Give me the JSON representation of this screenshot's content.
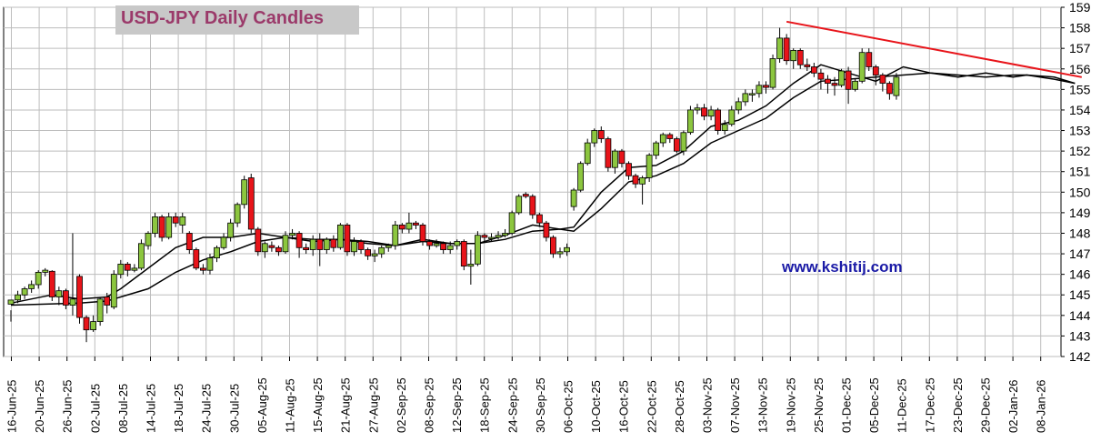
{
  "title": "USD-JPY Daily Candles",
  "watermark": "www.kshitij.com",
  "colors": {
    "up": "#8cc63f",
    "down": "#e8141a",
    "trendline": "#e8141a",
    "ma": "#000000",
    "grid": "#bdbdbd",
    "title_bg": "#c8c8c8",
    "title_text": "#9b3a6a",
    "watermark": "#1a1aa6"
  },
  "chart_data": {
    "type": "candlestick",
    "title": "USD-JPY Daily Candles",
    "ylim": [
      142,
      159
    ],
    "yticks": [
      142,
      143,
      144,
      145,
      146,
      147,
      148,
      149,
      150,
      151,
      152,
      153,
      154,
      155,
      156,
      157,
      158,
      159
    ],
    "y_axis_side": "right",
    "grid": true,
    "x_tick_labels": [
      "16-Jun-25",
      "20-Jun-25",
      "26-Jun-25",
      "02-Jul-25",
      "08-Jul-25",
      "14-Jul-25",
      "18-Jul-25",
      "24-Jul-25",
      "30-Jul-25",
      "05-Aug-25",
      "11-Aug-25",
      "15-Aug-25",
      "21-Aug-25",
      "27-Aug-25",
      "02-Sep-25",
      "08-Sep-25",
      "12-Sep-25",
      "18-Sep-25",
      "24-Sep-25",
      "30-Sep-25",
      "06-Oct-25",
      "10-Oct-25",
      "16-Oct-25",
      "22-Oct-25",
      "28-Oct-25",
      "03-Nov-25",
      "07-Nov-25",
      "13-Nov-25",
      "19-Nov-25",
      "25-Nov-25",
      "01-Dec-25",
      "05-Dec-25",
      "11-Dec-25",
      "17-Dec-25",
      "23-Dec-25",
      "29-Dec-25",
      "02-Jan-26",
      "08-Jan-26"
    ],
    "candles": [
      [
        144.55,
        144.75,
        144.25,
        143.7
      ],
      [
        144.75,
        145.0,
        145.2,
        144.6
      ],
      [
        145.0,
        145.3,
        145.4,
        144.8
      ],
      [
        145.3,
        145.5,
        145.7,
        145.1
      ],
      [
        145.5,
        146.1,
        146.2,
        145.3
      ],
      [
        146.1,
        146.2,
        146.3,
        145.9
      ],
      [
        146.15,
        144.9,
        146.2,
        144.7
      ],
      [
        144.9,
        145.2,
        145.4,
        144.5
      ],
      [
        145.2,
        144.5,
        145.3,
        144.3
      ],
      [
        144.5,
        144.8,
        148.0,
        144.0
      ],
      [
        145.9,
        143.9,
        146.0,
        143.6
      ],
      [
        143.9,
        143.3,
        144.0,
        142.7
      ],
      [
        143.3,
        143.7,
        144.0,
        143.2
      ],
      [
        143.7,
        144.8,
        144.9,
        143.5
      ],
      [
        144.9,
        144.5,
        145.1,
        144.1
      ],
      [
        144.4,
        146.0,
        146.2,
        144.3
      ],
      [
        146.0,
        146.5,
        146.7,
        145.8
      ],
      [
        146.5,
        146.2,
        146.6,
        145.9
      ],
      [
        146.2,
        146.3,
        146.5,
        146.1
      ],
      [
        146.3,
        147.5,
        147.7,
        146.2
      ],
      [
        147.4,
        148.0,
        148.1,
        147.2
      ],
      [
        148.0,
        148.8,
        149.0,
        147.8
      ],
      [
        148.8,
        147.8,
        148.9,
        147.6
      ],
      [
        147.8,
        148.8,
        149.0,
        147.7
      ],
      [
        148.8,
        148.5,
        149.0,
        148.3
      ],
      [
        148.4,
        148.8,
        149.0,
        148.0
      ],
      [
        148.0,
        147.2,
        148.1,
        147.0
      ],
      [
        147.2,
        146.3,
        147.3,
        146.2
      ],
      [
        146.3,
        146.2,
        146.5,
        146.0
      ],
      [
        146.2,
        146.8,
        147.0,
        146.0
      ],
      [
        146.8,
        147.3,
        147.4,
        146.6
      ],
      [
        147.3,
        147.8,
        148.0,
        147.2
      ],
      [
        147.8,
        148.5,
        148.7,
        147.6
      ],
      [
        148.5,
        149.4,
        149.5,
        148.3
      ],
      [
        149.4,
        150.6,
        150.8,
        149.2
      ],
      [
        150.7,
        148.2,
        150.9,
        148.0
      ],
      [
        148.2,
        147.1,
        148.3,
        146.9
      ],
      [
        147.1,
        147.5,
        147.6,
        146.8
      ],
      [
        147.4,
        147.3,
        147.6,
        147.1
      ],
      [
        147.3,
        147.1,
        147.4,
        146.9
      ],
      [
        147.1,
        147.9,
        148.1,
        147.0
      ],
      [
        147.9,
        148.0,
        148.2,
        147.7
      ],
      [
        148.0,
        147.3,
        148.1,
        146.8
      ],
      [
        147.3,
        147.2,
        147.5,
        147.0
      ],
      [
        147.2,
        147.7,
        147.9,
        146.9
      ],
      [
        147.7,
        147.2,
        148.0,
        146.4
      ],
      [
        147.2,
        147.7,
        147.8,
        147.0
      ],
      [
        147.7,
        147.3,
        147.9,
        147.1
      ],
      [
        147.3,
        148.4,
        148.5,
        147.2
      ],
      [
        148.4,
        147.1,
        148.5,
        146.9
      ],
      [
        147.1,
        147.6,
        147.8,
        146.9
      ],
      [
        147.6,
        147.2,
        147.7,
        147.0
      ],
      [
        147.2,
        146.9,
        147.3,
        146.7
      ],
      [
        146.9,
        147.0,
        147.2,
        146.6
      ],
      [
        147.0,
        147.3,
        147.4,
        146.8
      ],
      [
        147.3,
        147.4,
        147.5,
        147.1
      ],
      [
        147.4,
        148.4,
        148.6,
        147.2
      ],
      [
        148.4,
        148.2,
        148.5,
        148.0
      ],
      [
        148.2,
        148.5,
        149.0,
        148.0
      ],
      [
        148.5,
        148.4,
        148.6,
        148.2
      ],
      [
        148.4,
        147.6,
        148.5,
        147.4
      ],
      [
        147.6,
        147.4,
        147.7,
        147.2
      ],
      [
        147.4,
        147.5,
        147.7,
        147.3
      ],
      [
        147.5,
        147.2,
        147.6,
        147.0
      ],
      [
        147.2,
        147.4,
        147.6,
        147.0
      ],
      [
        147.4,
        147.6,
        147.7,
        147.2
      ],
      [
        147.6,
        146.4,
        147.7,
        146.2
      ],
      [
        146.4,
        146.5,
        147.2,
        145.5
      ],
      [
        146.5,
        147.9,
        148.1,
        146.4
      ],
      [
        147.9,
        147.8,
        148.0,
        147.6
      ],
      [
        147.8,
        147.8,
        148.0,
        147.6
      ],
      [
        147.8,
        147.9,
        148.1,
        147.7
      ],
      [
        147.9,
        148.0,
        148.2,
        147.8
      ],
      [
        148.0,
        149.0,
        149.1,
        147.9
      ],
      [
        149.0,
        149.8,
        149.9,
        148.9
      ],
      [
        149.9,
        149.8,
        150.0,
        149.7
      ],
      [
        149.8,
        148.9,
        149.9,
        148.7
      ],
      [
        148.9,
        148.5,
        149.0,
        148.3
      ],
      [
        148.5,
        147.8,
        148.6,
        147.6
      ],
      [
        147.8,
        147.0,
        147.9,
        146.8
      ],
      [
        147.0,
        147.1,
        147.3,
        146.8
      ],
      [
        147.1,
        147.3,
        147.5,
        146.9
      ],
      [
        149.3,
        150.1,
        150.2,
        149.1
      ],
      [
        150.1,
        151.4,
        151.5,
        150.0
      ],
      [
        151.4,
        152.4,
        152.6,
        151.3
      ],
      [
        152.4,
        153.0,
        153.1,
        152.2
      ],
      [
        153.0,
        152.6,
        153.2,
        152.4
      ],
      [
        152.6,
        151.2,
        152.7,
        151.0
      ],
      [
        151.2,
        152.0,
        152.1,
        150.9
      ],
      [
        152.0,
        151.4,
        152.1,
        151.2
      ],
      [
        151.4,
        150.8,
        151.5,
        150.6
      ],
      [
        150.8,
        150.4,
        150.9,
        150.2
      ],
      [
        150.4,
        150.7,
        150.8,
        149.4
      ],
      [
        150.7,
        151.8,
        151.9,
        150.5
      ],
      [
        151.8,
        152.4,
        152.5,
        151.6
      ],
      [
        152.4,
        152.8,
        152.9,
        152.2
      ],
      [
        152.8,
        152.6,
        152.9,
        152.4
      ],
      [
        152.6,
        152.0,
        152.7,
        151.9
      ],
      [
        152.0,
        152.9,
        153.0,
        151.8
      ],
      [
        152.9,
        154.0,
        154.2,
        152.8
      ],
      [
        154.0,
        154.1,
        154.3,
        153.8
      ],
      [
        154.1,
        153.7,
        154.3,
        153.5
      ],
      [
        153.7,
        154.0,
        154.2,
        153.5
      ],
      [
        154.0,
        153.0,
        154.1,
        152.8
      ],
      [
        153.0,
        153.3,
        153.5,
        152.8
      ],
      [
        153.3,
        154.0,
        154.2,
        153.2
      ],
      [
        154.0,
        154.4,
        154.6,
        153.8
      ],
      [
        154.4,
        154.8,
        155.0,
        154.2
      ],
      [
        154.8,
        154.8,
        155.0,
        154.4
      ],
      [
        154.8,
        155.2,
        155.4,
        154.6
      ],
      [
        155.2,
        155.1,
        155.4,
        154.8
      ],
      [
        155.1,
        156.5,
        156.7,
        155.0
      ],
      [
        156.5,
        157.5,
        158.0,
        156.3
      ],
      [
        157.5,
        156.4,
        157.7,
        156.2
      ],
      [
        156.4,
        156.9,
        157.0,
        156.0
      ],
      [
        156.9,
        156.2,
        157.0,
        156.0
      ],
      [
        156.2,
        156.1,
        156.5,
        155.9
      ],
      [
        156.1,
        155.8,
        156.3,
        155.6
      ],
      [
        155.8,
        155.5,
        156.0,
        155.0
      ],
      [
        155.5,
        155.3,
        155.7,
        154.8
      ],
      [
        155.3,
        155.2,
        155.6,
        154.7
      ],
      [
        155.2,
        155.9,
        156.0,
        155.1
      ],
      [
        155.9,
        155.0,
        156.1,
        154.3
      ],
      [
        155.0,
        155.4,
        155.5,
        154.9
      ],
      [
        155.4,
        156.8,
        157.0,
        155.3
      ],
      [
        156.8,
        156.1,
        157.0,
        155.9
      ],
      [
        156.1,
        155.7,
        156.2,
        155.2
      ],
      [
        155.7,
        155.3,
        155.8,
        154.9
      ],
      [
        155.3,
        154.8,
        155.4,
        154.5
      ],
      [
        154.7,
        155.6,
        155.8,
        154.5
      ]
    ],
    "ma_short": [
      [
        0,
        144.6
      ],
      [
        6,
        145.0
      ],
      [
        10,
        144.8
      ],
      [
        14,
        144.9
      ],
      [
        16,
        145.3
      ],
      [
        20,
        146.3
      ],
      [
        24,
        147.3
      ],
      [
        28,
        147.8
      ],
      [
        32,
        147.8
      ],
      [
        36,
        148.0
      ],
      [
        40,
        147.8
      ],
      [
        44,
        147.6
      ],
      [
        48,
        147.7
      ],
      [
        52,
        147.5
      ],
      [
        56,
        147.4
      ],
      [
        60,
        147.7
      ],
      [
        64,
        147.5
      ],
      [
        68,
        147.5
      ],
      [
        72,
        147.9
      ],
      [
        76,
        148.4
      ],
      [
        80,
        148.2
      ],
      [
        82,
        148.3
      ],
      [
        86,
        150.0
      ],
      [
        90,
        151.2
      ],
      [
        94,
        151.3
      ],
      [
        98,
        152.0
      ],
      [
        102,
        153.2
      ],
      [
        106,
        153.5
      ],
      [
        110,
        154.2
      ],
      [
        114,
        155.3
      ],
      [
        118,
        156.2
      ],
      [
        122,
        155.8
      ],
      [
        126,
        155.4
      ],
      [
        130,
        156.1
      ],
      [
        134,
        155.8
      ],
      [
        138,
        155.6
      ],
      [
        142,
        155.8
      ],
      [
        146,
        155.6
      ],
      [
        148,
        155.7
      ],
      [
        152,
        155.6
      ],
      [
        155,
        155.3
      ]
    ],
    "ma_long": [
      [
        0,
        144.5
      ],
      [
        10,
        144.6
      ],
      [
        14,
        144.7
      ],
      [
        16,
        144.9
      ],
      [
        20,
        145.3
      ],
      [
        24,
        146.1
      ],
      [
        28,
        146.7
      ],
      [
        32,
        147.1
      ],
      [
        36,
        147.6
      ],
      [
        40,
        147.8
      ],
      [
        44,
        147.7
      ],
      [
        48,
        147.7
      ],
      [
        52,
        147.6
      ],
      [
        56,
        147.4
      ],
      [
        60,
        147.6
      ],
      [
        64,
        147.5
      ],
      [
        68,
        147.5
      ],
      [
        72,
        147.7
      ],
      [
        76,
        148.1
      ],
      [
        80,
        148.2
      ],
      [
        82,
        148.1
      ],
      [
        86,
        149.2
      ],
      [
        90,
        150.5
      ],
      [
        94,
        150.8
      ],
      [
        98,
        151.4
      ],
      [
        102,
        152.4
      ],
      [
        106,
        153.0
      ],
      [
        110,
        153.6
      ],
      [
        114,
        154.6
      ],
      [
        118,
        155.4
      ],
      [
        122,
        155.5
      ],
      [
        126,
        155.6
      ],
      [
        130,
        155.7
      ],
      [
        134,
        155.8
      ],
      [
        138,
        155.7
      ],
      [
        142,
        155.6
      ],
      [
        146,
        155.7
      ],
      [
        148,
        155.7
      ],
      [
        152,
        155.5
      ],
      [
        155,
        155.3
      ]
    ],
    "trendline": {
      "from": [
        113,
        158.3
      ],
      "to": [
        156,
        155.6
      ]
    }
  }
}
